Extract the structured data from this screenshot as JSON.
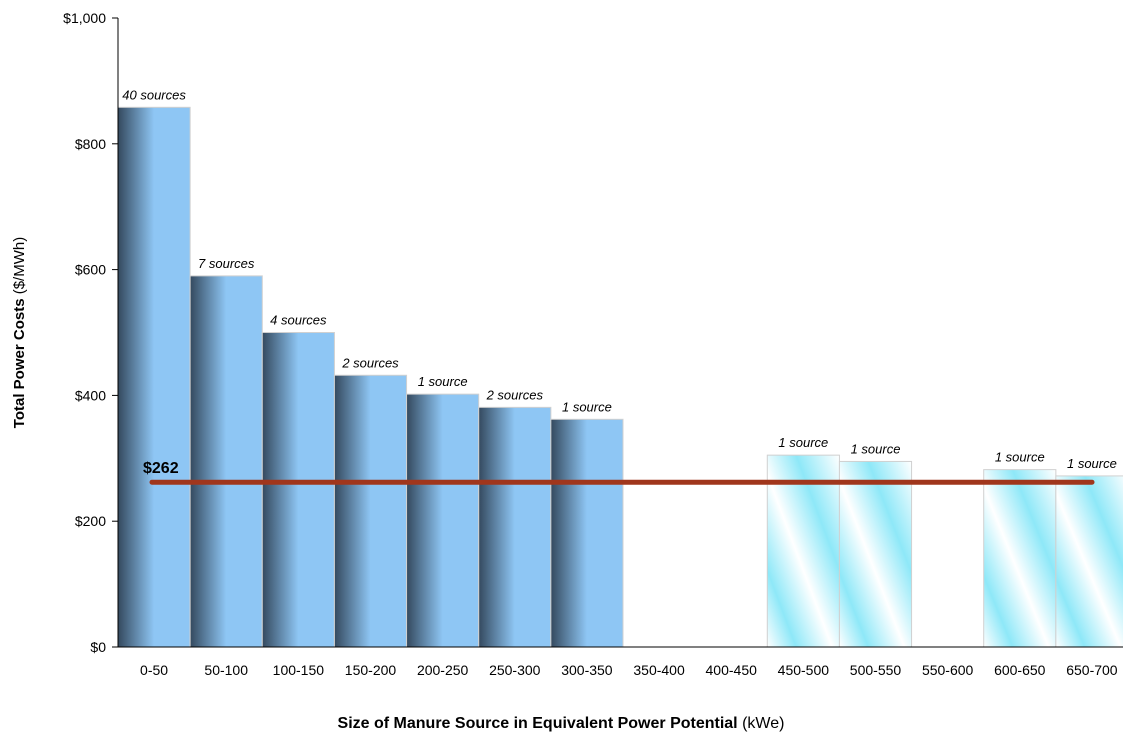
{
  "chart_data": {
    "type": "bar",
    "categories": [
      "0-50",
      "50-100",
      "100-150",
      "150-200",
      "200-250",
      "250-300",
      "300-350",
      "350-400",
      "400-450",
      "450-500",
      "500-550",
      "550-600",
      "600-650",
      "650-700"
    ],
    "values": [
      858,
      590,
      500,
      432,
      402,
      381,
      362,
      null,
      null,
      305,
      295,
      null,
      282,
      272
    ],
    "counts": [
      "40 sources",
      "7 sources",
      "4 sources",
      "2 sources",
      "1 source",
      "2 sources",
      "1 source",
      "",
      "",
      "1 source",
      "1 source",
      "",
      "1 source",
      "1 source"
    ],
    "bar_style": [
      "solid",
      "solid",
      "solid",
      "solid",
      "solid",
      "solid",
      "solid",
      "",
      "",
      "light",
      "light",
      "",
      "light",
      "light"
    ],
    "ylim": [
      0,
      1000
    ],
    "yticks": [
      0,
      200,
      400,
      600,
      800,
      1000
    ],
    "ytick_labels": [
      "$0",
      "$200",
      "$400",
      "$600",
      "$800",
      "$1,000"
    ],
    "ylabel_bold": "Total Power Costs",
    "ylabel_rest": " ($/MWh)",
    "xlabel_bold": "Size of Manure Source in Equivalent Power Potential",
    "xlabel_rest": " (kWe)",
    "reference_line": {
      "value": 262,
      "label": "$262",
      "color": "#a0361c"
    },
    "colors": {
      "bar_light": "#8ec6f4",
      "bar_dark": "#3c5268",
      "cyan": "#8ee8f8"
    },
    "grid": false,
    "legend": "none"
  }
}
